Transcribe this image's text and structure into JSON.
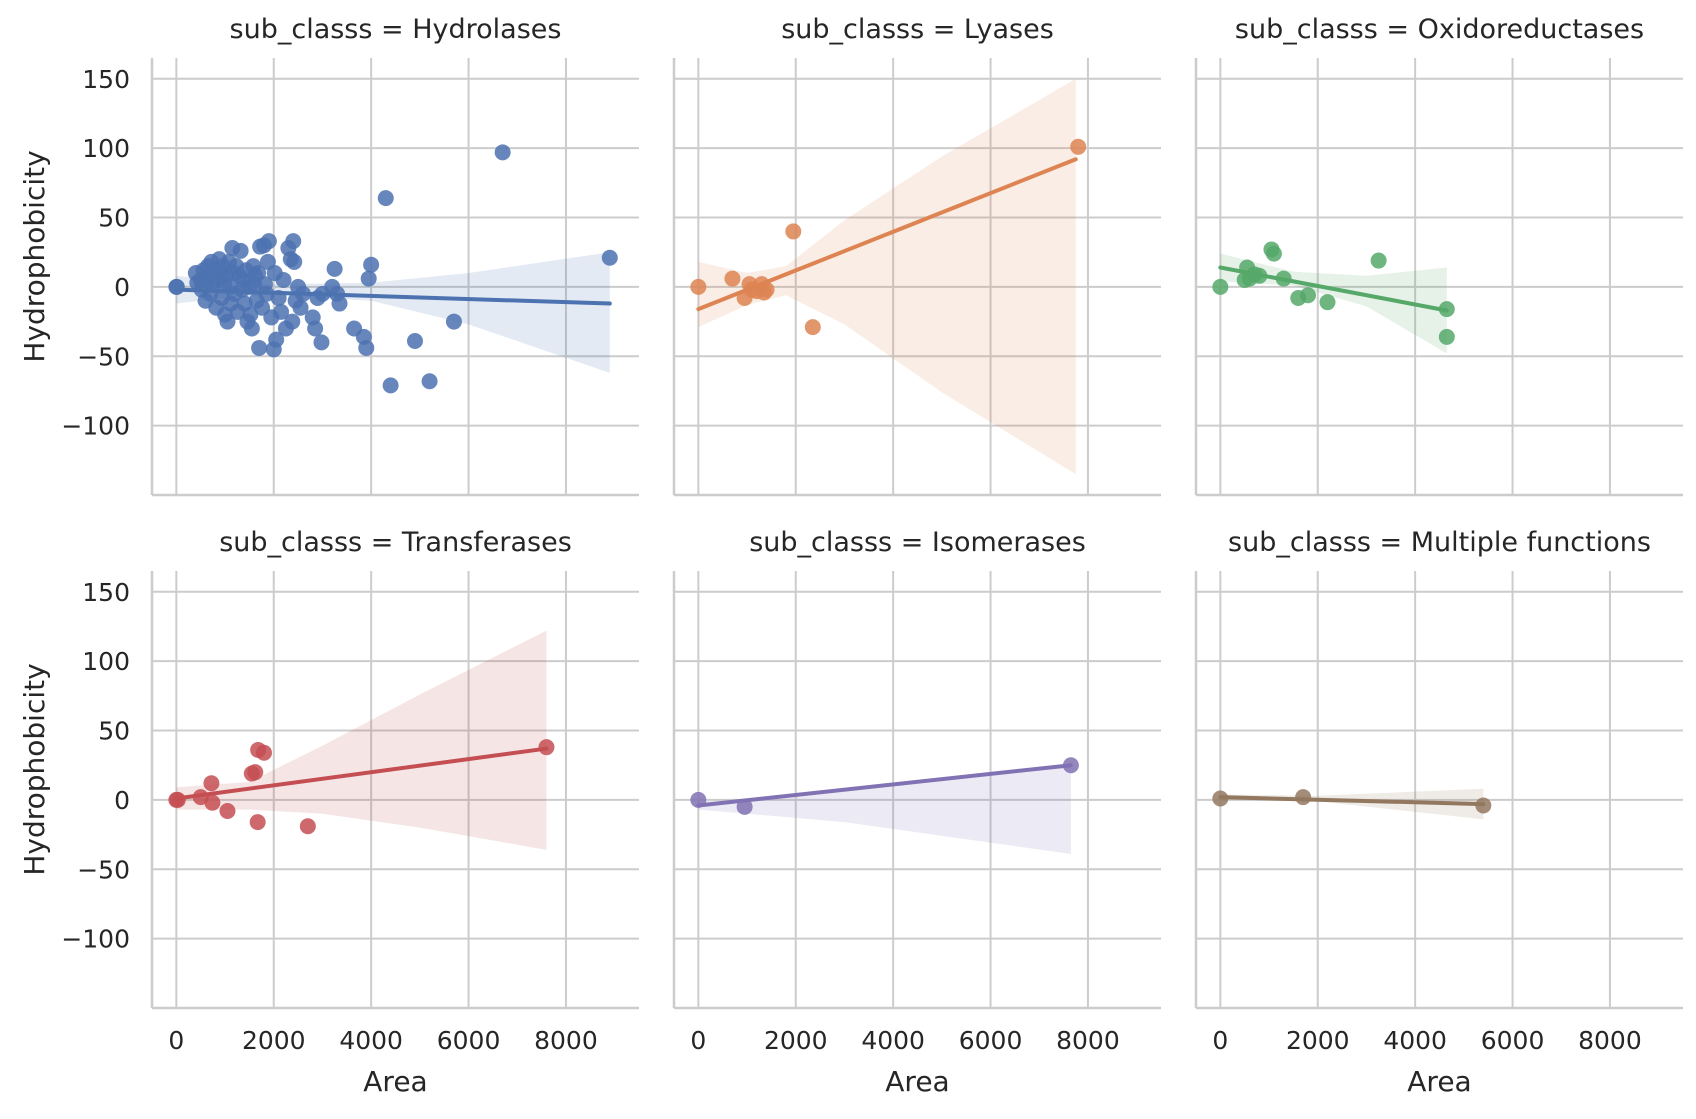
{
  "chart_data": {
    "type": "scatter",
    "figure_kind": "facet grid of scatter plots with linear regression fits and confidence bands",
    "xlabel": "Area",
    "ylabel": "Hydrophobicity",
    "xlim": [
      -500,
      9500
    ],
    "ylim": [
      -150,
      165
    ],
    "xticks": [
      0,
      2000,
      4000,
      6000,
      8000
    ],
    "yticks": [
      -100,
      -50,
      0,
      50,
      100,
      150
    ],
    "grid": true,
    "panels": [
      {
        "title": "sub_classs = Hydrolases",
        "color": "#4c72b0",
        "points": [
          [
            0,
            0
          ],
          [
            10,
            0
          ],
          [
            400,
            10
          ],
          [
            430,
            3
          ],
          [
            500,
            5
          ],
          [
            520,
            -2
          ],
          [
            560,
            12
          ],
          [
            600,
            -10
          ],
          [
            620,
            5
          ],
          [
            650,
            15
          ],
          [
            680,
            8
          ],
          [
            700,
            -5
          ],
          [
            720,
            18
          ],
          [
            760,
            2
          ],
          [
            800,
            12
          ],
          [
            820,
            -15
          ],
          [
            850,
            5
          ],
          [
            880,
            20
          ],
          [
            900,
            10
          ],
          [
            930,
            -8
          ],
          [
            960,
            15
          ],
          [
            980,
            2
          ],
          [
            1000,
            -20
          ],
          [
            1020,
            8
          ],
          [
            1050,
            -25
          ],
          [
            1080,
            18
          ],
          [
            1100,
            0
          ],
          [
            1120,
            -12
          ],
          [
            1150,
            28
          ],
          [
            1180,
            10
          ],
          [
            1200,
            -5
          ],
          [
            1230,
            15
          ],
          [
            1260,
            -18
          ],
          [
            1300,
            8
          ],
          [
            1320,
            26
          ],
          [
            1350,
            -2
          ],
          [
            1380,
            5
          ],
          [
            1400,
            -12
          ],
          [
            1430,
            12
          ],
          [
            1460,
            -25
          ],
          [
            1500,
            0
          ],
          [
            1520,
            -20
          ],
          [
            1550,
            -30
          ],
          [
            1580,
            15
          ],
          [
            1600,
            2
          ],
          [
            1620,
            8
          ],
          [
            1650,
            -10
          ],
          [
            1680,
            10
          ],
          [
            1700,
            -44
          ],
          [
            1720,
            29
          ],
          [
            1760,
            -15
          ],
          [
            1800,
            30
          ],
          [
            1820,
            2
          ],
          [
            1850,
            -5
          ],
          [
            1880,
            18
          ],
          [
            1900,
            33
          ],
          [
            1950,
            -22
          ],
          [
            2000,
            -45
          ],
          [
            2020,
            10
          ],
          [
            2050,
            -38
          ],
          [
            2100,
            -8
          ],
          [
            2150,
            -18
          ],
          [
            2200,
            5
          ],
          [
            2250,
            -30
          ],
          [
            2300,
            28
          ],
          [
            2350,
            20
          ],
          [
            2380,
            -25
          ],
          [
            2400,
            33
          ],
          [
            2420,
            18
          ],
          [
            2450,
            -10
          ],
          [
            2500,
            0
          ],
          [
            2550,
            -15
          ],
          [
            2600,
            -5
          ],
          [
            2800,
            -22
          ],
          [
            2850,
            -30
          ],
          [
            2900,
            -8
          ],
          [
            2980,
            -40
          ],
          [
            3000,
            -5
          ],
          [
            3200,
            0
          ],
          [
            3250,
            13
          ],
          [
            3300,
            -5
          ],
          [
            3350,
            -12
          ],
          [
            3650,
            -30
          ],
          [
            3850,
            -36
          ],
          [
            3900,
            -44
          ],
          [
            3950,
            6
          ],
          [
            4000,
            16
          ],
          [
            4300,
            64
          ],
          [
            4400,
            -71
          ],
          [
            4900,
            -39
          ],
          [
            5200,
            -68
          ],
          [
            5700,
            -25
          ],
          [
            6700,
            97
          ],
          [
            8900,
            21
          ]
        ],
        "fit": [
          [
            0,
            -2
          ],
          [
            8900,
            -12
          ]
        ],
        "ci_upper": [
          [
            0,
            8
          ],
          [
            1000,
            4
          ],
          [
            2000,
            2
          ],
          [
            4000,
            3
          ],
          [
            6000,
            10
          ],
          [
            8900,
            25
          ]
        ],
        "ci_lower": [
          [
            0,
            -12
          ],
          [
            1000,
            -8
          ],
          [
            2000,
            -6
          ],
          [
            4000,
            -10
          ],
          [
            6000,
            -27
          ],
          [
            8900,
            -62
          ]
        ]
      },
      {
        "title": "sub_classs = Lyases",
        "color": "#dd8452",
        "points": [
          [
            0,
            0
          ],
          [
            700,
            6
          ],
          [
            950,
            -8
          ],
          [
            1050,
            2
          ],
          [
            1100,
            -2
          ],
          [
            1200,
            -3
          ],
          [
            1300,
            2
          ],
          [
            1350,
            -4
          ],
          [
            1400,
            -2
          ],
          [
            1950,
            40
          ],
          [
            2350,
            -29
          ],
          [
            7800,
            101
          ]
        ],
        "fit": [
          [
            0,
            -16
          ],
          [
            7750,
            92
          ]
        ],
        "ci_upper": [
          [
            0,
            18
          ],
          [
            1000,
            10
          ],
          [
            1800,
            15
          ],
          [
            3000,
            48
          ],
          [
            5000,
            94
          ],
          [
            7750,
            150
          ]
        ],
        "ci_lower": [
          [
            0,
            -29
          ],
          [
            1000,
            -13
          ],
          [
            1800,
            -6
          ],
          [
            3000,
            -27
          ],
          [
            5000,
            -76
          ],
          [
            7750,
            -135
          ]
        ]
      },
      {
        "title": "sub_classs = Oxidoreductases",
        "color": "#55a868",
        "points": [
          [
            0,
            0
          ],
          [
            500,
            5
          ],
          [
            550,
            14
          ],
          [
            600,
            6
          ],
          [
            700,
            9
          ],
          [
            800,
            8
          ],
          [
            1050,
            27
          ],
          [
            1100,
            24
          ],
          [
            1300,
            6
          ],
          [
            1600,
            -8
          ],
          [
            1800,
            -6
          ],
          [
            2200,
            -11
          ],
          [
            3250,
            19
          ],
          [
            4650,
            -16
          ],
          [
            4650,
            -36
          ]
        ],
        "fit": [
          [
            0,
            14
          ],
          [
            4650,
            -17
          ]
        ],
        "ci_upper": [
          [
            0,
            24
          ],
          [
            1500,
            11
          ],
          [
            3000,
            8
          ],
          [
            4650,
            14
          ]
        ],
        "ci_lower": [
          [
            0,
            4
          ],
          [
            1500,
            1
          ],
          [
            3000,
            -14
          ],
          [
            4650,
            -48
          ]
        ]
      },
      {
        "title": "sub_classs = Transferases",
        "color": "#c44e52",
        "points": [
          [
            0,
            0
          ],
          [
            30,
            0
          ],
          [
            500,
            2
          ],
          [
            720,
            12
          ],
          [
            740,
            -2
          ],
          [
            1050,
            -8
          ],
          [
            1550,
            19
          ],
          [
            1620,
            20
          ],
          [
            1670,
            -16
          ],
          [
            1680,
            36
          ],
          [
            1800,
            34
          ],
          [
            2700,
            -19
          ],
          [
            7600,
            38
          ]
        ],
        "fit": [
          [
            0,
            1
          ],
          [
            7600,
            37
          ]
        ],
        "ci_upper": [
          [
            0,
            9
          ],
          [
            1500,
            13
          ],
          [
            3000,
            39
          ],
          [
            5000,
            76
          ],
          [
            7600,
            122
          ]
        ],
        "ci_lower": [
          [
            0,
            -7
          ],
          [
            1500,
            -7
          ],
          [
            3000,
            -10
          ],
          [
            5000,
            -20
          ],
          [
            7600,
            -36
          ]
        ]
      },
      {
        "title": "sub_classs = Isomerases",
        "color": "#8172b3",
        "points": [
          [
            0,
            0
          ],
          [
            950,
            -5
          ],
          [
            7650,
            25
          ]
        ],
        "fit": [
          [
            0,
            -4
          ],
          [
            7650,
            25
          ]
        ],
        "ci_upper": [
          [
            0,
            -1
          ],
          [
            1000,
            0
          ],
          [
            3000,
            7
          ],
          [
            7650,
            25
          ]
        ],
        "ci_lower": [
          [
            0,
            -7
          ],
          [
            1000,
            -10
          ],
          [
            3000,
            -16
          ],
          [
            7650,
            -39
          ]
        ]
      },
      {
        "title": "sub_classs = Multiple functions",
        "color": "#937860",
        "points": [
          [
            0,
            1
          ],
          [
            1700,
            2
          ],
          [
            5400,
            -4
          ]
        ],
        "fit": [
          [
            0,
            2
          ],
          [
            5400,
            -3
          ]
        ],
        "ci_upper": [
          [
            0,
            4
          ],
          [
            2000,
            3
          ],
          [
            5400,
            8
          ]
        ],
        "ci_lower": [
          [
            0,
            0
          ],
          [
            2000,
            -1
          ],
          [
            5400,
            -14
          ]
        ]
      }
    ]
  }
}
